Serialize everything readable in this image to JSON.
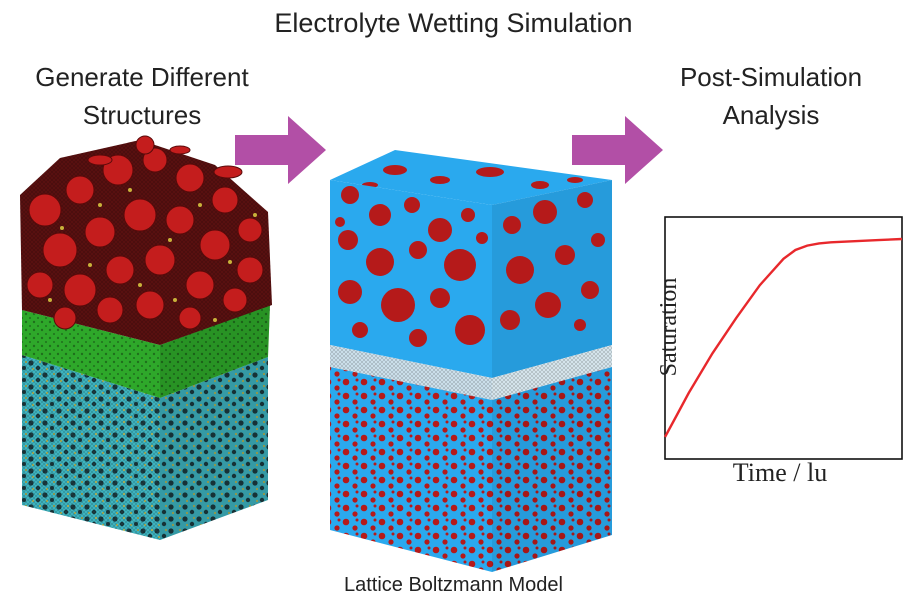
{
  "title": "Electrolyte Wetting Simulation",
  "left_heading": [
    "Generate Different",
    "Structures"
  ],
  "right_heading": [
    "Post-Simulation",
    "Analysis"
  ],
  "bottom_caption": "Lattice Boltzmann Model",
  "colors": {
    "arrow": "#b24fa6",
    "particle_red": "#b51a1a",
    "electrolyte_blue": "#2aa9ee",
    "separator_green": "#2ea82a",
    "anode_cyan": "#3fb6c2",
    "binder_yellow": "#c8b23a",
    "curve": "#e8282c"
  },
  "chart_data": {
    "type": "line",
    "title": "",
    "xlabel": "Time / lu",
    "ylabel": "Saturation",
    "series": [
      {
        "x": [
          0,
          0.05,
          0.1,
          0.2,
          0.3,
          0.4,
          0.5,
          0.55,
          0.6,
          0.65,
          0.7,
          0.8,
          0.9,
          1.0
        ],
        "y": [
          0.1,
          0.2,
          0.3,
          0.48,
          0.64,
          0.79,
          0.91,
          0.95,
          0.97,
          0.98,
          0.985,
          0.99,
          0.995,
          1.0
        ]
      }
    ],
    "grid": false,
    "ticks": false
  }
}
